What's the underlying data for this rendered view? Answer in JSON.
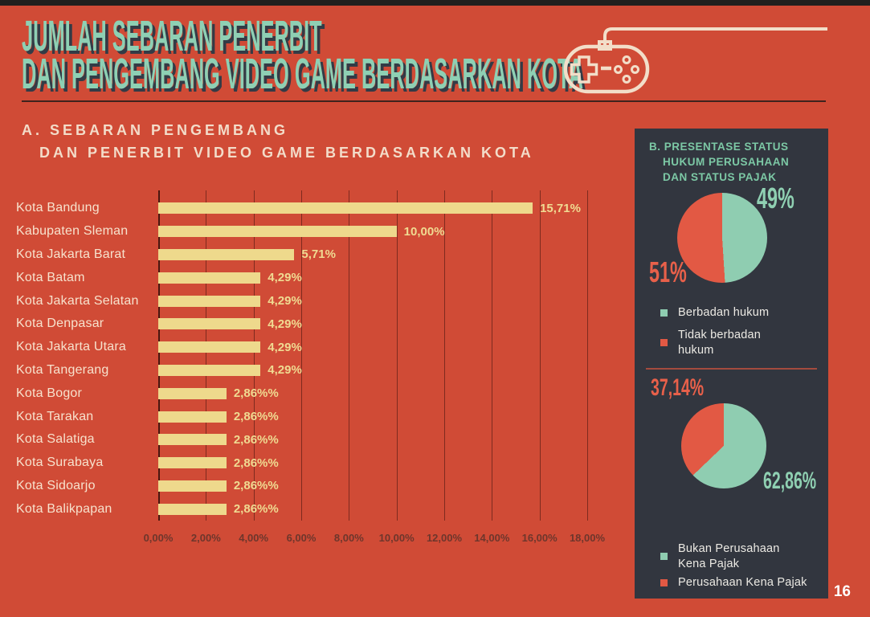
{
  "page": {
    "number": "16"
  },
  "header": {
    "title_line1": "JUMLAH SEBARAN PENERBIT",
    "title_line2": "DAN PENGEMBANG VIDEO GAME BERDASARKAN KOTA",
    "icon": "game-controller"
  },
  "section_a": {
    "heading_line1": "A. SEBARAN PENGEMBANG",
    "heading_line2": "DAN PENERBIT VIDEO GAME BERDASARKAN KOTA"
  },
  "panel_b": {
    "heading": "B. PRESENTASE STATUS\nHUKUM PERUSAHAAN\nDAN STATUS PAJAK"
  },
  "colors": {
    "background": "#d04b36",
    "title_teal": "#8ed0b4",
    "title_shadow": "#333b46",
    "bar": "#eed98c",
    "cream_text": "#f7e2cd",
    "panel_background": "#32363f",
    "pie_teal": "#8fcdb1",
    "pie_red": "#e25944",
    "divider_red": "#a44b3e"
  },
  "chart_data": [
    {
      "type": "bar",
      "orientation": "horizontal",
      "title": "A. Sebaran Pengembang dan Penerbit Video Game Berdasarkan Kota",
      "categories": [
        "Kota Bandung",
        "Kabupaten Sleman",
        "Kota Jakarta Barat",
        "Kota Batam",
        "Kota Jakarta Selatan",
        "Kota Denpasar",
        "Kota Jakarta Utara",
        "Kota Tangerang",
        "Kota Bogor",
        "Kota Tarakan",
        "Kota Salatiga",
        "Kota Surabaya",
        "Kota Sidoarjo",
        "Kota Balikpapan"
      ],
      "values": [
        15.71,
        10.0,
        5.71,
        4.29,
        4.29,
        4.29,
        4.29,
        4.29,
        2.86,
        2.86,
        2.86,
        2.86,
        2.86,
        2.86
      ],
      "value_labels": [
        "15,71%",
        "10,00%",
        "5,71%",
        "4,29%",
        "4,29%",
        "4,29%",
        "4,29%",
        "4,29%",
        "2,86%%",
        "2,86%%",
        "2,86%%",
        "2,86%%",
        "2,86%%",
        "2,86%%"
      ],
      "x_ticks": [
        "0,00%",
        "2,00%",
        "4,00%",
        "6,00%",
        "8,00%",
        "10,00%",
        "12,00%",
        "14,00%",
        "16,00%",
        "18,00%"
      ],
      "xlim": [
        0,
        18
      ],
      "bar_color": "#eed98c",
      "grid": true,
      "legend": "none"
    },
    {
      "type": "pie",
      "title": "Status hukum perusahaan",
      "slices": [
        {
          "label": "Berbadan hukum",
          "value": 49,
          "display": "49%",
          "color": "#8fcdb1"
        },
        {
          "label": "Tidak berbadan hukum",
          "value": 51,
          "display": "51%",
          "color": "#e25944"
        }
      ],
      "legend_position": "below"
    },
    {
      "type": "pie",
      "title": "Status pajak",
      "slices": [
        {
          "label": "Bukan Perusahaan Kena Pajak",
          "value": 62.86,
          "display": "62,86%",
          "color": "#8fcdb1"
        },
        {
          "label": "Perusahaan Kena Pajak",
          "value": 37.14,
          "display": "37,14%",
          "color": "#e25944"
        }
      ],
      "legend_position": "below"
    }
  ]
}
